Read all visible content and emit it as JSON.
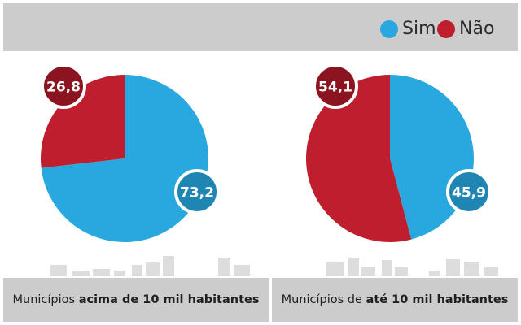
{
  "colors": {
    "sim": "#29a8e0",
    "nao": "#be1e2d",
    "sim_badge": "#1f86b3",
    "nao_badge": "#8c1420",
    "header": "#cccccc",
    "skyline": "#dddddd"
  },
  "legend": [
    {
      "label": "Sim",
      "color": "#29a8e0"
    },
    {
      "label": "Não",
      "color": "#be1e2d"
    }
  ],
  "chart_data": [
    {
      "type": "pie",
      "title": "Municípios acima de 10 mil habitantes",
      "caption_prefix": "Municípios ",
      "caption_bold": "acima de 10 mil habitantes",
      "slices": [
        {
          "name": "Sim",
          "value": 73.2,
          "label": "73,2"
        },
        {
          "name": "Não",
          "value": 26.8,
          "label": "26,8"
        }
      ]
    },
    {
      "type": "pie",
      "title": "Municípios de até 10 mil habitantes",
      "caption_prefix": "Municípios de ",
      "caption_bold": "até 10 mil habitantes",
      "slices": [
        {
          "name": "Sim",
          "value": 45.9,
          "label": "45,9"
        },
        {
          "name": "Não",
          "value": 54.1,
          "label": "54,1"
        }
      ]
    }
  ]
}
